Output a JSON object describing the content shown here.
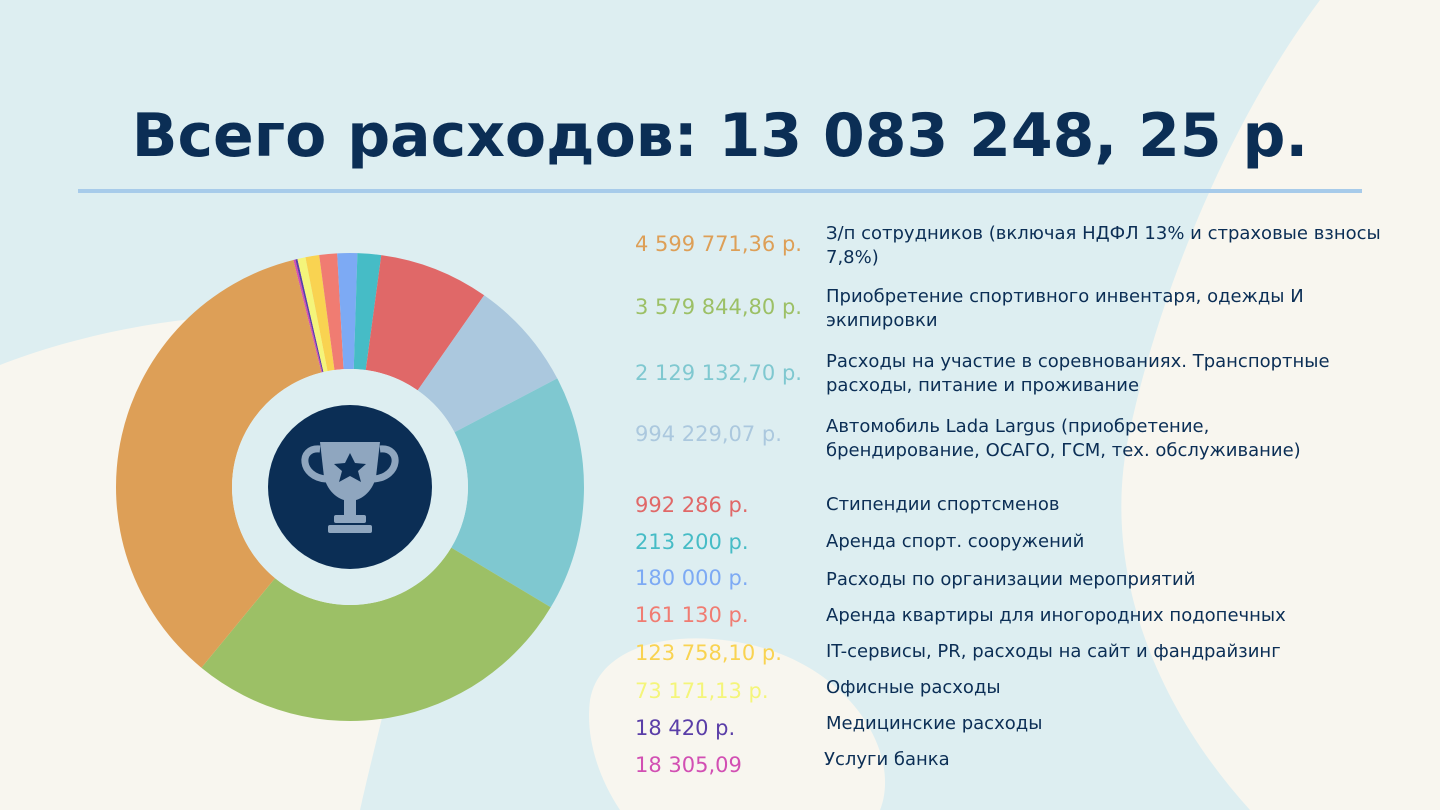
{
  "title": "Всего расходов: 13 083 248, 25 р.",
  "colors": {
    "background": "#ddeef1",
    "title": "#0b2e55",
    "rule": "#a7cbea",
    "badge": "#0b2e55",
    "badge_icon": "#8fa6bf"
  },
  "chart_data": {
    "type": "pie",
    "style": "donut",
    "center_icon": "trophy-icon",
    "series": [
      {
        "label_text": "4 599 771,36 р.",
        "value": 4599771.36,
        "label": "З/п сотрудников (включая НДФЛ 13% и страховые взносы 7,8%)",
        "color": "#dd9f57"
      },
      {
        "label_text": "3 579 844,80 р.",
        "value": 3579844.8,
        "label": "Приобретение спортивного инвентаря, одежды И экипировки",
        "color": "#9cc066"
      },
      {
        "label_text": "2 129 132,70 р.",
        "value": 2129132.7,
        "label": "Расходы на участие в соревнованиях. Транспортные расходы, питание и проживание",
        "color": "#7fc8d0"
      },
      {
        "label_text": "994 229,07 р.",
        "value": 994229.07,
        "label": "Автомобиль Lada Largus (приобретение, брендирование, ОСАГО, ГСМ, тех. обслуживание)",
        "color": "#abc8de"
      },
      {
        "label_text": "992 286 р.",
        "value": 992286,
        "label": "Стипендии спортсменов",
        "color": "#e06868"
      },
      {
        "label_text": "213 200 р.",
        "value": 213200,
        "label": "Аренда спорт. сооружений",
        "color": "#46bcc6"
      },
      {
        "label_text": "180 000 р.",
        "value": 180000,
        "label": "Расходы по организации мероприятий",
        "color": "#7daaf4"
      },
      {
        "label_text": "161 130 р.",
        "value": 161130,
        "label": "Аренда квартиры для иногородних подопечных",
        "color": "#f07c72"
      },
      {
        "label_text": "123 758,10 р.",
        "value": 123758.1,
        "label": "IT-сервисы, PR, расходы на сайт и фандрайзинг",
        "color": "#f9d351"
      },
      {
        "label_text": "73 171,13 р.",
        "value": 73171.13,
        "label": "Офисные расходы",
        "color": "#f4f57a"
      },
      {
        "label_text": "18 420 р.",
        "value": 18420,
        "label": "Медицинские расходы",
        "color": "#5a3ea8"
      },
      {
        "label_text": "18 305,09",
        "value": 18305.09,
        "label": "Услуги банка",
        "color": "#d24fb3"
      }
    ]
  }
}
